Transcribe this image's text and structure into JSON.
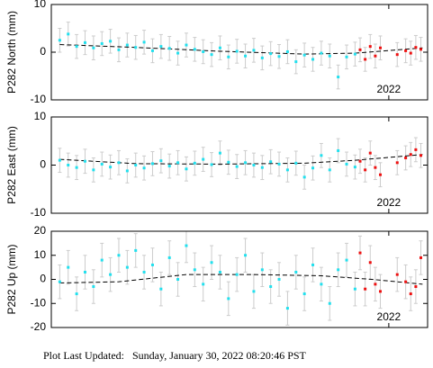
{
  "chart_data": [
    {
      "type": "scatter",
      "ylabel": "P282 North (mm)",
      "xlim": [
        2020.0,
        2022.23
      ],
      "xticks": [
        2022
      ],
      "ylim": [
        -10,
        10
      ],
      "yticks": [
        -10,
        0,
        10
      ],
      "series": [
        {
          "color": "#22e0ee",
          "error": 2.5,
          "x": [
            2020.05,
            2020.1,
            2020.15,
            2020.2,
            2020.25,
            2020.3,
            2020.35,
            2020.4,
            2020.45,
            2020.5,
            2020.55,
            2020.6,
            2020.65,
            2020.7,
            2020.75,
            2020.8,
            2020.85,
            2020.9,
            2020.95,
            2021.0,
            2021.05,
            2021.1,
            2021.15,
            2021.2,
            2021.25,
            2021.3,
            2021.35,
            2021.4,
            2021.45,
            2021.5,
            2021.55,
            2021.6,
            2021.65,
            2021.7,
            2021.75,
            2021.8
          ],
          "values": [
            2.5,
            3.8,
            1.2,
            2.0,
            0.9,
            1.8,
            2.3,
            0.5,
            1.5,
            1.0,
            2.1,
            0.3,
            1.2,
            0.8,
            -0.2,
            1.5,
            0.6,
            0.1,
            -0.5,
            0.9,
            -1.0,
            0.2,
            -0.8,
            0.4,
            -1.2,
            -0.3,
            -0.9,
            0.1,
            -2.0,
            -0.6,
            -1.5,
            -0.2,
            -0.8,
            -5.2,
            -1.0,
            -0.4
          ]
        },
        {
          "color": "#ee1111",
          "error": 2.5,
          "x": [
            2021.83,
            2021.86,
            2021.89,
            2021.92,
            2021.95,
            2022.05,
            2022.1,
            2022.13,
            2022.16,
            2022.19
          ],
          "values": [
            0.5,
            -1.5,
            1.2,
            -0.8,
            0.9,
            -0.5,
            0.3,
            -0.2,
            1.0,
            0.6
          ]
        }
      ],
      "trend": {
        "x": [
          2020.05,
          2020.5,
          2021.0,
          2021.5,
          2021.8,
          2022.2
        ],
        "values": [
          1.6,
          1.0,
          0.2,
          -0.4,
          -0.2,
          0.9
        ]
      }
    },
    {
      "type": "scatter",
      "ylabel": "P282 East (mm)",
      "xlim": [
        2020.0,
        2022.23
      ],
      "xticks": [
        2022
      ],
      "ylim": [
        -10,
        10
      ],
      "yticks": [
        -10,
        0,
        10
      ],
      "series": [
        {
          "color": "#22e0ee",
          "error": 2.5,
          "x": [
            2020.05,
            2020.1,
            2020.15,
            2020.2,
            2020.25,
            2020.3,
            2020.35,
            2020.4,
            2020.45,
            2020.5,
            2020.55,
            2020.6,
            2020.65,
            2020.7,
            2020.75,
            2020.8,
            2020.85,
            2020.9,
            2020.95,
            2021.0,
            2021.05,
            2021.1,
            2021.15,
            2021.2,
            2021.25,
            2021.3,
            2021.35,
            2021.4,
            2021.45,
            2021.5,
            2021.55,
            2021.6,
            2021.65,
            2021.7,
            2021.75,
            2021.8
          ],
          "values": [
            1.0,
            0.0,
            -0.5,
            0.8,
            -1.0,
            0.2,
            -0.4,
            0.5,
            -1.2,
            0.0,
            -0.6,
            0.3,
            0.9,
            -0.2,
            0.5,
            -0.8,
            0.4,
            1.2,
            0.1,
            2.5,
            0.6,
            -0.3,
            0.5,
            0.0,
            -0.5,
            0.7,
            0.2,
            -1.0,
            0.4,
            -2.5,
            -0.6,
            2.0,
            -1.0,
            3.0,
            0.2,
            -0.4
          ]
        },
        {
          "color": "#ee1111",
          "error": 2.5,
          "x": [
            2021.83,
            2021.86,
            2021.89,
            2021.92,
            2021.95,
            2022.05,
            2022.1,
            2022.13,
            2022.16,
            2022.19
          ],
          "values": [
            0.8,
            -1.0,
            2.5,
            -0.5,
            -2.0,
            0.5,
            1.5,
            2.2,
            3.2,
            2.0
          ]
        }
      ],
      "trend": {
        "x": [
          2020.05,
          2020.5,
          2021.0,
          2021.5,
          2021.8,
          2022.2
        ],
        "values": [
          1.2,
          0.3,
          0.2,
          0.4,
          1.0,
          2.2
        ]
      }
    },
    {
      "type": "scatter",
      "ylabel": "P282 Up (mm)",
      "xlim": [
        2020.0,
        2022.23
      ],
      "xticks": [
        2022
      ],
      "ylim": [
        -20,
        20
      ],
      "yticks": [
        -20,
        -10,
        0,
        10,
        20
      ],
      "series": [
        {
          "color": "#22e0ee",
          "error": 7,
          "x": [
            2020.05,
            2020.1,
            2020.15,
            2020.2,
            2020.25,
            2020.3,
            2020.35,
            2020.4,
            2020.45,
            2020.5,
            2020.55,
            2020.6,
            2020.65,
            2020.7,
            2020.75,
            2020.8,
            2020.85,
            2020.9,
            2020.95,
            2021.0,
            2021.05,
            2021.1,
            2021.15,
            2021.2,
            2021.25,
            2021.3,
            2021.35,
            2021.4,
            2021.45,
            2021.5,
            2021.55,
            2021.6,
            2021.65,
            2021.7,
            2021.75,
            2021.8
          ],
          "values": [
            -1,
            5,
            -6,
            3,
            -3,
            8,
            2,
            10,
            5,
            12,
            3,
            6,
            -4,
            9,
            0,
            14,
            4,
            -2,
            7,
            3,
            -8,
            2,
            10,
            -5,
            4,
            -3,
            0,
            -12,
            3,
            -6,
            6,
            -2,
            -10,
            4,
            8,
            -4
          ]
        },
        {
          "color": "#ee1111",
          "error": 7,
          "x": [
            2021.83,
            2021.86,
            2021.89,
            2021.92,
            2021.95,
            2022.05,
            2022.1,
            2022.13,
            2022.16,
            2022.19
          ],
          "values": [
            11,
            -4,
            7,
            -2,
            -5,
            2,
            -1,
            -6,
            -3,
            9
          ]
        }
      ],
      "trend": {
        "x": [
          2020.05,
          2020.4,
          2020.8,
          2021.2,
          2021.6,
          2021.9,
          2022.2
        ],
        "values": [
          -1.5,
          -1,
          2,
          2,
          1.5,
          0,
          -2
        ]
      }
    }
  ],
  "footer": "Plot Last Updated:   Sunday, January 30, 2022 08:20:46 PST"
}
